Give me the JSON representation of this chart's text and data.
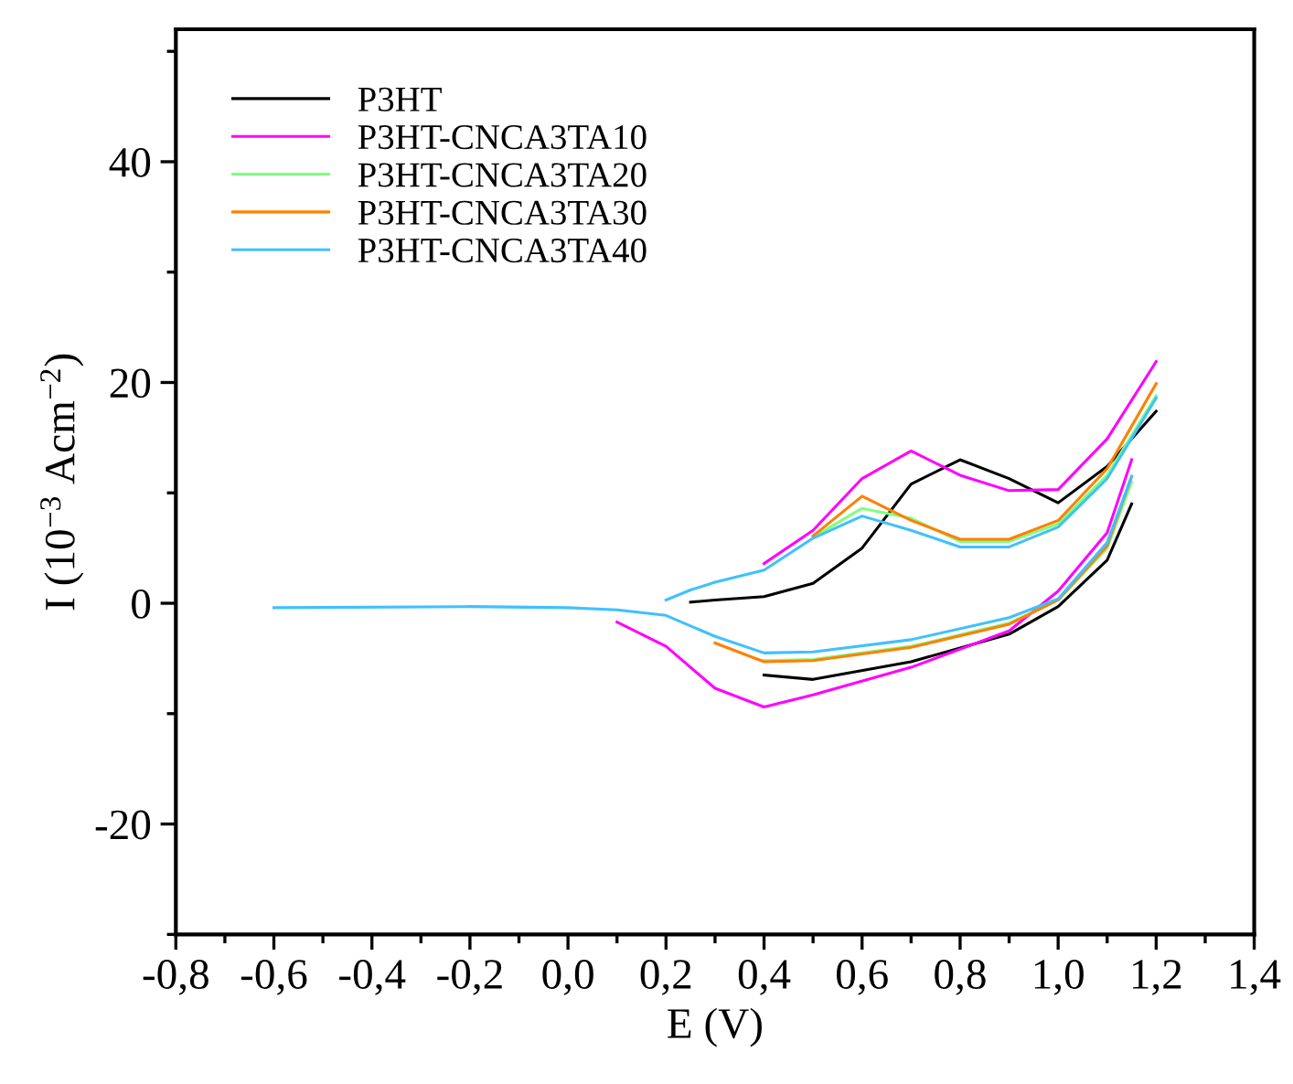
{
  "chart_data": {
    "type": "line",
    "xlabel": "E (V)",
    "ylabel": "I (10$^{−3}$ Acm$^{−2}$)",
    "series": [
      {
        "name": "P3HT",
        "color": "#000000",
        "x": [
          0.25,
          0.3,
          0.4,
          0.5,
          0.6,
          0.7,
          0.8,
          0.9,
          1.0,
          1.1,
          1.2
        ],
        "values": [
          0.1,
          0.3,
          0.6,
          1.8,
          5.0,
          10.8,
          13.0,
          11.3,
          9.1,
          12.4,
          17.4
        ]
      },
      {
        "color": "#000000",
        "x": [
          0.4,
          0.5,
          0.7,
          0.9,
          1.0,
          1.1,
          1.15
        ],
        "values": [
          -6.5,
          -6.9,
          -5.3,
          -2.8,
          -0.3,
          3.9,
          9.0
        ]
      },
      {
        "name": "P3HT-CNCA3TA10",
        "color": "#ff00ff",
        "x": [
          0.4,
          0.5,
          0.6,
          0.7,
          0.8,
          0.9,
          1.0,
          1.1,
          1.2
        ],
        "values": [
          3.6,
          6.6,
          11.3,
          13.8,
          11.6,
          10.2,
          10.3,
          14.9,
          21.9
        ]
      },
      {
        "color": "#ff00ff",
        "x": [
          0.1,
          0.2,
          0.3,
          0.4,
          0.5,
          0.7,
          0.9,
          1.0,
          1.1,
          1.15
        ],
        "values": [
          -1.7,
          -3.9,
          -7.7,
          -9.4,
          -8.3,
          -5.8,
          -2.5,
          1.1,
          6.4,
          13.0
        ]
      },
      {
        "name": "P3HT-CNCA3TA20",
        "color": "#80ff80",
        "x": [
          0.5,
          0.6,
          0.7,
          0.8,
          0.9,
          1.0,
          1.1,
          1.2
        ],
        "values": [
          6.0,
          8.6,
          7.7,
          5.6,
          5.6,
          7.2,
          11.6,
          18.8
        ]
      },
      {
        "color": "#80ff80",
        "x": [
          0.4,
          0.5,
          0.7,
          0.9,
          1.0,
          1.1,
          1.15
        ],
        "values": [
          -5.2,
          -5.1,
          -3.9,
          -1.8,
          0.3,
          5.0,
          11.0
        ]
      },
      {
        "name": "P3HT-CNCA3TA30",
        "color": "#ff8000",
        "x": [
          0.5,
          0.6,
          0.7,
          0.8,
          0.9,
          1.0,
          1.1,
          1.2
        ],
        "values": [
          6.1,
          9.7,
          7.5,
          5.8,
          5.8,
          7.5,
          12.2,
          19.9
        ]
      },
      {
        "color": "#ff8000",
        "x": [
          0.3,
          0.4,
          0.5,
          0.7,
          0.9,
          1.0,
          1.1,
          1.15
        ],
        "values": [
          -3.6,
          -5.3,
          -5.2,
          -4.0,
          -1.9,
          0.3,
          5.2,
          11.5
        ]
      },
      {
        "name": "P3HT-CNCA3TA40",
        "color": "#40c0ff",
        "x": [
          0.2,
          0.25,
          0.3,
          0.4,
          0.5,
          0.6,
          0.7,
          0.8,
          0.9,
          1.0,
          1.1,
          1.2
        ],
        "values": [
          0.3,
          1.2,
          1.9,
          3.0,
          5.9,
          7.9,
          6.6,
          5.1,
          5.1,
          6.9,
          11.3,
          18.6
        ]
      },
      {
        "color": "#40c0ff",
        "x": [
          -0.6,
          -0.2,
          0,
          0.1,
          0.2,
          0.3,
          0.4,
          0.5,
          0.7,
          0.9,
          1.0,
          1.1,
          1.15
        ],
        "values": [
          -0.4,
          -0.3,
          -0.4,
          -0.6,
          -1.1,
          -3.0,
          -4.5,
          -4.4,
          -3.3,
          -1.3,
          0.4,
          5.5,
          11.5
        ]
      }
    ],
    "xlim": [
      -0.8,
      1.4
    ],
    "xticks": [
      {
        "value": -0.8,
        "label": "-0,8"
      },
      {
        "value": -0.6,
        "label": "-0,6"
      },
      {
        "value": -0.4,
        "label": "-0,4"
      },
      {
        "value": -0.2,
        "label": "-0,2"
      },
      {
        "value": 0,
        "label": "0,0"
      },
      {
        "value": 0.2,
        "label": "0,2"
      },
      {
        "value": 0.4,
        "label": "0,4"
      },
      {
        "value": 0.6,
        "label": "0,6"
      },
      {
        "value": 0.8,
        "label": "0,8"
      },
      {
        "value": 1.0,
        "label": "1,0"
      },
      {
        "value": 1.2,
        "label": "1,2"
      },
      {
        "value": 1.4,
        "label": "1,4"
      }
    ],
    "ylim": [
      -30,
      52
    ],
    "yticks": [
      -20,
      0,
      20,
      40
    ],
    "grid": false,
    "legend": "top left",
    "line_style": "solid",
    "marker": "none"
  }
}
